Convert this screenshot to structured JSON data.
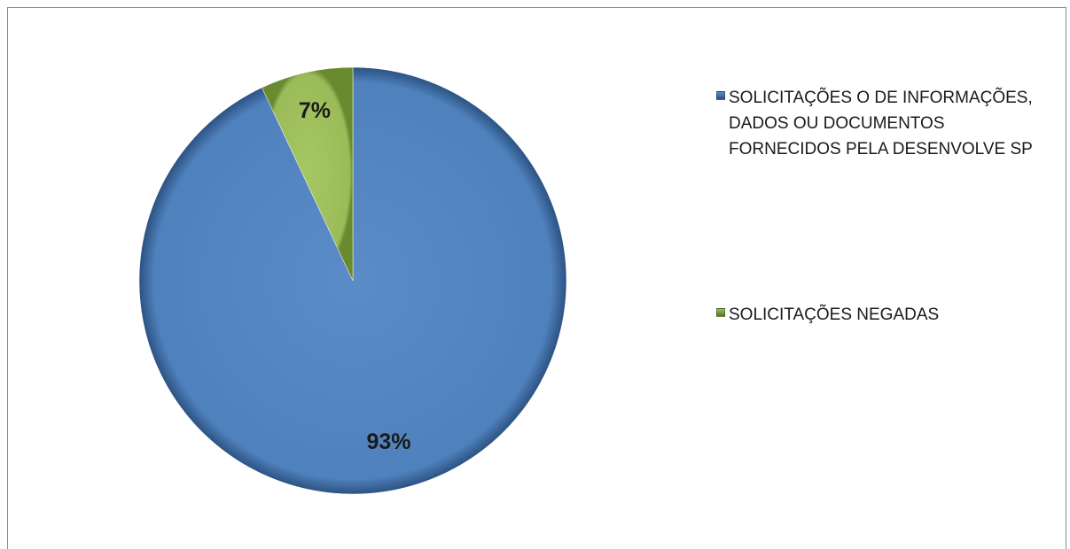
{
  "chart_data": {
    "type": "pie",
    "title": "",
    "slices": [
      {
        "name": "SOLICITAÇÕES O DE INFORMAÇÕES, DADOS OU DOCUMENTOS FORNECIDOS PELA DESENVOLVE SP",
        "value": 93,
        "label": "93%",
        "color": "#4f81bd"
      },
      {
        "name": "SOLICITAÇÕES NEGADAS",
        "value": 7,
        "label": "7%",
        "color": "#9bbb59"
      }
    ],
    "legend_placement": "right"
  },
  "legend": {
    "items": [
      {
        "label": "SOLICITAÇÕES O DE INFORMAÇÕES, DADOS OU DOCUMENTOS FORNECIDOS PELA DESENVOLVE SP"
      },
      {
        "label": "SOLICITAÇÕES NEGADAS"
      }
    ]
  }
}
